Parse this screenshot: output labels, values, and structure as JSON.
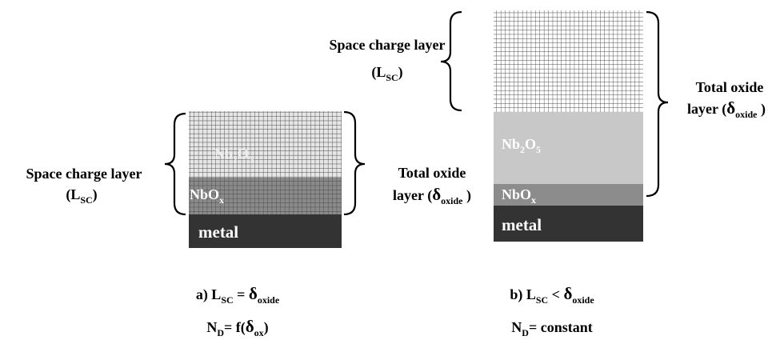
{
  "panel_a": {
    "layers": {
      "oxide": [
        "Nb",
        "2",
        "O",
        "5"
      ],
      "suboxide": [
        "NbO",
        "x"
      ],
      "metal": "metal"
    },
    "space_charge_label": {
      "line1": "Space charge layer",
      "line2": [
        "(L",
        "SC",
        ")"
      ]
    },
    "oxide_label": {
      "line1": "Total oxide",
      "line2": [
        "layer (",
        "δ",
        "oxide",
        " )"
      ]
    },
    "caption": [
      "a) L",
      "SC",
      " = ",
      "δ",
      "oxide"
    ],
    "condition": [
      "N",
      "D",
      "= f(",
      "δ",
      "ox",
      ")"
    ]
  },
  "panel_b": {
    "layers": {
      "oxide": [
        "Nb",
        "2",
        "O",
        "5"
      ],
      "suboxide": [
        "NbO",
        "x"
      ],
      "metal": "metal"
    },
    "space_charge_label": {
      "line1": "Space charge layer",
      "line2": [
        "(L",
        "SC",
        ")"
      ]
    },
    "oxide_label": {
      "line1": "Total oxide",
      "line2": [
        "layer (",
        "δ",
        "oxide",
        " )"
      ]
    },
    "caption": [
      "b) L",
      "SC",
      " < ",
      "δ",
      "oxide"
    ],
    "condition": [
      "N",
      "D",
      "= constant"
    ]
  }
}
